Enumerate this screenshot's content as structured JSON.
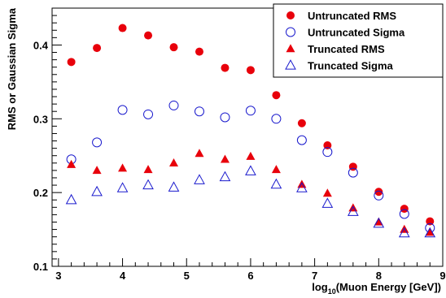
{
  "chart_data": {
    "type": "scatter",
    "title": "",
    "xlabel": "log10(Muon Energy [GeV])",
    "xlabel_parts": {
      "prefix": "log",
      "subscript": "10",
      "suffix": "(Muon Energy [GeV])"
    },
    "ylabel": "RMS or Gaussian Sigma",
    "xlim": [
      2.9,
      9.0
    ],
    "ylim": [
      0.1,
      0.45
    ],
    "x_ticks": [
      "3",
      "4",
      "5",
      "6",
      "7",
      "8",
      "9"
    ],
    "y_ticks": [
      "0.1",
      "0.2",
      "0.3",
      "0.4"
    ],
    "x_tick_values": [
      3,
      4,
      5,
      6,
      7,
      8,
      9
    ],
    "y_tick_values": [
      0.1,
      0.2,
      0.3,
      0.4
    ],
    "grid": false,
    "legend_position": "top-right",
    "series": [
      {
        "name": "Untruncated RMS",
        "marker": "filled-circle",
        "color": "#e8000b",
        "x": [
          3.2,
          3.6,
          4.0,
          4.4,
          4.8,
          5.2,
          5.6,
          6.0,
          6.4,
          6.8,
          7.2,
          7.6,
          8.0,
          8.4,
          8.8
        ],
        "y": [
          0.377,
          0.396,
          0.423,
          0.413,
          0.397,
          0.391,
          0.369,
          0.366,
          0.332,
          0.294,
          0.264,
          0.235,
          0.201,
          0.178,
          0.161
        ]
      },
      {
        "name": "Untruncated Sigma",
        "marker": "open-circle",
        "color": "#1a1acd",
        "x": [
          3.2,
          3.6,
          4.0,
          4.4,
          4.8,
          5.2,
          5.6,
          6.0,
          6.4,
          6.8,
          7.2,
          7.6,
          8.0,
          8.4,
          8.8
        ],
        "y": [
          0.245,
          0.268,
          0.312,
          0.306,
          0.318,
          0.31,
          0.302,
          0.311,
          0.3,
          0.271,
          0.255,
          0.227,
          0.196,
          0.171,
          0.152
        ]
      },
      {
        "name": "Truncated RMS",
        "marker": "filled-triangle",
        "color": "#e8000b",
        "x": [
          3.2,
          3.6,
          4.0,
          4.4,
          4.8,
          5.2,
          5.6,
          6.0,
          6.4,
          6.8,
          7.2,
          7.6,
          8.0,
          8.4,
          8.8
        ],
        "y": [
          0.238,
          0.23,
          0.233,
          0.231,
          0.24,
          0.253,
          0.245,
          0.249,
          0.231,
          0.211,
          0.199,
          0.179,
          0.16,
          0.15,
          0.146
        ]
      },
      {
        "name": "Truncated Sigma",
        "marker": "open-triangle",
        "color": "#1a1acd",
        "x": [
          3.2,
          3.6,
          4.0,
          4.4,
          4.8,
          5.2,
          5.6,
          6.0,
          6.4,
          6.8,
          7.2,
          7.6,
          8.0,
          8.4,
          8.8
        ],
        "y": [
          0.19,
          0.201,
          0.206,
          0.21,
          0.207,
          0.217,
          0.221,
          0.229,
          0.211,
          0.206,
          0.185,
          0.174,
          0.158,
          0.145,
          0.145
        ]
      }
    ]
  }
}
